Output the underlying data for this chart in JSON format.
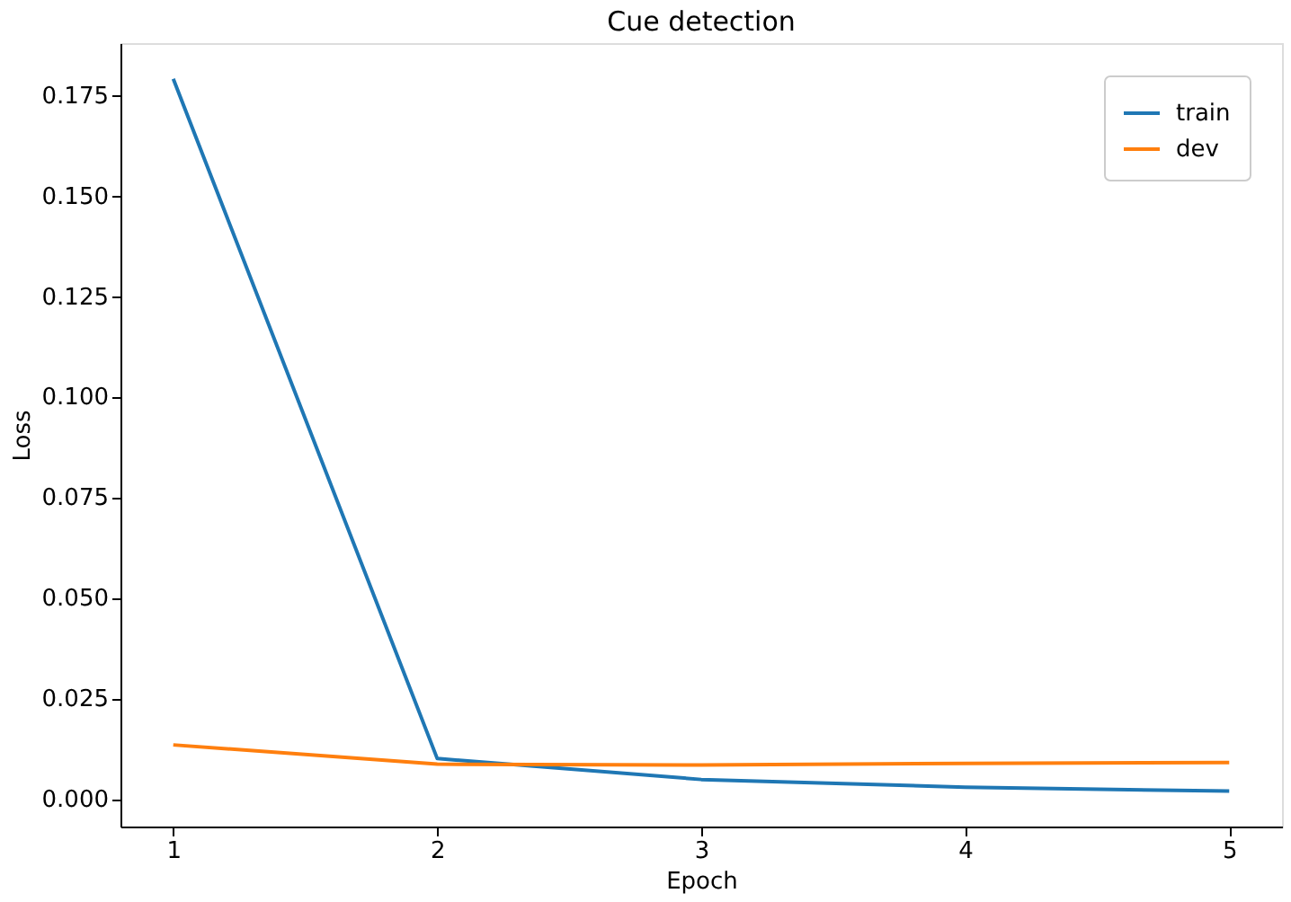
{
  "chart_data": {
    "type": "line",
    "title": "Cue detection",
    "xlabel": "Epoch",
    "ylabel": "Loss",
    "x": [
      1,
      2,
      3,
      4,
      5
    ],
    "series": [
      {
        "name": "train",
        "color": "#1f77b4",
        "values": [
          0.179,
          0.01,
          0.0048,
          0.0029,
          0.0019
        ]
      },
      {
        "name": "dev",
        "color": "#ff7f0e",
        "values": [
          0.0134,
          0.0086,
          0.0084,
          0.0088,
          0.009
        ]
      }
    ],
    "xlim": [
      0.8,
      5.2
    ],
    "xticks": [
      1,
      2,
      3,
      4,
      5
    ],
    "ylim": [
      -0.0069,
      0.1879
    ],
    "yticks": [
      {
        "value": 0,
        "label": "0.000"
      },
      {
        "value": 0.025,
        "label": "0.025"
      },
      {
        "value": 0.05,
        "label": "0.050"
      },
      {
        "value": 0.075,
        "label": "0.075"
      },
      {
        "value": 0.1,
        "label": "0.100"
      },
      {
        "value": 0.125,
        "label": "0.125"
      },
      {
        "value": 0.15,
        "label": "0.150"
      },
      {
        "value": 0.175,
        "label": "0.175"
      }
    ],
    "grid": false,
    "legend": "top right",
    "marker": "none",
    "line_style": "solid"
  }
}
